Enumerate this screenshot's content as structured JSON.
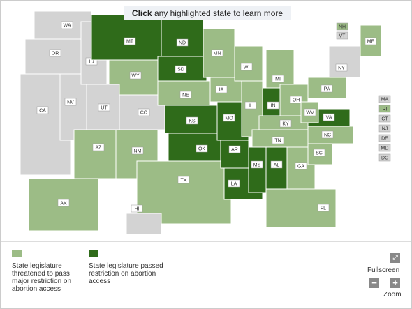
{
  "header": {
    "click": "Click",
    "text": "any highlighted state to learn more"
  },
  "status_colors": {
    "none": "#d3d3d3",
    "threatened": "#9cbc86",
    "passed": "#2f6b1a"
  },
  "states": [
    {
      "label": "WA",
      "status": "none"
    },
    {
      "label": "OR",
      "status": "none"
    },
    {
      "label": "CA",
      "status": "none"
    },
    {
      "label": "NV",
      "status": "none"
    },
    {
      "label": "ID",
      "status": "none"
    },
    {
      "label": "MT",
      "status": "passed"
    },
    {
      "label": "WY",
      "status": "threatened"
    },
    {
      "label": "UT",
      "status": "none"
    },
    {
      "label": "CO",
      "status": "none"
    },
    {
      "label": "AZ",
      "status": "threatened"
    },
    {
      "label": "NM",
      "status": "threatened"
    },
    {
      "label": "ND",
      "status": "passed"
    },
    {
      "label": "SD",
      "status": "passed"
    },
    {
      "label": "NE",
      "status": "threatened"
    },
    {
      "label": "KS",
      "status": "passed"
    },
    {
      "label": "OK",
      "status": "passed"
    },
    {
      "label": "TX",
      "status": "threatened"
    },
    {
      "label": "MN",
      "status": "threatened"
    },
    {
      "label": "IA",
      "status": "threatened"
    },
    {
      "label": "MO",
      "status": "passed"
    },
    {
      "label": "AR",
      "status": "passed"
    },
    {
      "label": "LA",
      "status": "passed"
    },
    {
      "label": "WI",
      "status": "threatened"
    },
    {
      "label": "IL",
      "status": "threatened"
    },
    {
      "label": "MI",
      "status": "threatened"
    },
    {
      "label": "IN",
      "status": "passed"
    },
    {
      "label": "OH",
      "status": "threatened"
    },
    {
      "label": "KY",
      "status": "threatened"
    },
    {
      "label": "TN",
      "status": "threatened"
    },
    {
      "label": "MS",
      "status": "passed"
    },
    {
      "label": "AL",
      "status": "passed"
    },
    {
      "label": "GA",
      "status": "threatened"
    },
    {
      "label": "FL",
      "status": "threatened"
    },
    {
      "label": "SC",
      "status": "threatened"
    },
    {
      "label": "NC",
      "status": "threatened"
    },
    {
      "label": "VA",
      "status": "passed"
    },
    {
      "label": "WV",
      "status": "threatened"
    },
    {
      "label": "PA",
      "status": "threatened"
    },
    {
      "label": "NY",
      "status": "none"
    },
    {
      "label": "ME",
      "status": "threatened"
    },
    {
      "label": "AK",
      "status": "threatened"
    },
    {
      "label": "HI",
      "status": "none"
    }
  ],
  "small_states": [
    {
      "label": "NH",
      "status": "threatened"
    },
    {
      "label": "VT",
      "status": "none"
    },
    {
      "label": "MA",
      "status": "none"
    },
    {
      "label": "RI",
      "status": "threatened"
    },
    {
      "label": "CT",
      "status": "none"
    },
    {
      "label": "NJ",
      "status": "none"
    },
    {
      "label": "DE",
      "status": "none"
    },
    {
      "label": "MD",
      "status": "none"
    },
    {
      "label": "DC",
      "status": "none"
    }
  ],
  "legend": [
    {
      "label": "State legislature threatened to pass major restriction on abortion access",
      "status": "threatened"
    },
    {
      "label": "State legislature passed restriction on abortion access",
      "status": "passed"
    }
  ],
  "controls": {
    "fullscreen": "Fullscreen",
    "zoom": "Zoom"
  }
}
